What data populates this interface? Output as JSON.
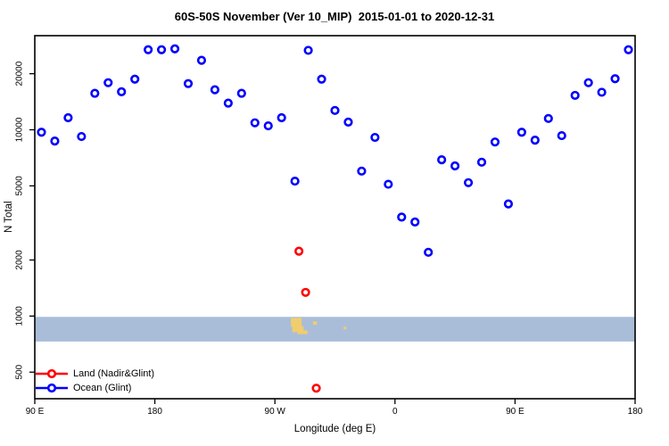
{
  "title": "60S-50S November (Ver 10_MIP)  2015-01-01 to 2020-12-31",
  "axes": {
    "x_label": "Longitude (deg E)",
    "y_label": "N Total"
  },
  "legend": {
    "items": [
      {
        "label": "Land (Nadir&Glint)",
        "color": "#ff0000",
        "symbol": "open-circle-on-line"
      },
      {
        "label": "Ocean (Glint)",
        "color": "#0000ff",
        "symbol": "open-circle-on-line"
      }
    ]
  },
  "chart_data": {
    "type": "scatter",
    "title": "60S-50S November (Ver 10_MIP)  2015-01-01 to 2020-12-31",
    "xlabel": "Longitude (deg E)",
    "ylabel": "N Total",
    "x_axis": {
      "note": "longitude axis wraps: 90E..180..90W..0..90E..180 (plot coordinate 90..540)",
      "range": [
        90,
        540
      ],
      "ticks": [
        {
          "at": 90,
          "label": "90 E"
        },
        {
          "at": 180,
          "label": "180"
        },
        {
          "at": 270,
          "label": "90 W"
        },
        {
          "at": 360,
          "label": "0"
        },
        {
          "at": 450,
          "label": "90 E"
        },
        {
          "at": 540,
          "label": "180"
        }
      ]
    },
    "y_axis": {
      "scale": "log",
      "range": [
        360,
        32000
      ],
      "ticks": [
        {
          "at": 500,
          "label": "500"
        },
        {
          "at": 1000,
          "label": "1000"
        },
        {
          "at": 2000,
          "label": "2000"
        },
        {
          "at": 5000,
          "label": "5000"
        },
        {
          "at": 10000,
          "label": "10000"
        },
        {
          "at": 20000,
          "label": "20000"
        }
      ]
    },
    "series": [
      {
        "name": "Ocean (Glint)",
        "color": "#0000ff",
        "marker": "open-circle",
        "points": [
          [
            95,
            9700
          ],
          [
            105,
            8700
          ],
          [
            115,
            11600
          ],
          [
            125,
            9200
          ],
          [
            135,
            15700
          ],
          [
            145,
            17900
          ],
          [
            155,
            16000
          ],
          [
            165,
            18700
          ],
          [
            175,
            26900
          ],
          [
            185,
            26900
          ],
          [
            195,
            27200
          ],
          [
            205,
            17700
          ],
          [
            215,
            23600
          ],
          [
            225,
            16400
          ],
          [
            235,
            13900
          ],
          [
            245,
            15700
          ],
          [
            255,
            10900
          ],
          [
            265,
            10500
          ],
          [
            275,
            11600
          ],
          [
            285,
            5300
          ],
          [
            295,
            26700
          ],
          [
            305,
            18700
          ],
          [
            315,
            12700
          ],
          [
            325,
            11000
          ],
          [
            335,
            6000
          ],
          [
            345,
            9100
          ],
          [
            355,
            5100
          ],
          [
            365,
            3400
          ],
          [
            375,
            3200
          ],
          [
            385,
            2200
          ],
          [
            395,
            6900
          ],
          [
            405,
            6400
          ],
          [
            415,
            5200
          ],
          [
            425,
            6700
          ],
          [
            435,
            8600
          ],
          [
            445,
            4000
          ],
          [
            455,
            9700
          ],
          [
            465,
            8800
          ],
          [
            475,
            11500
          ],
          [
            485,
            9300
          ],
          [
            495,
            15300
          ],
          [
            505,
            17900
          ],
          [
            515,
            15900
          ],
          [
            525,
            18800
          ],
          [
            535,
            26900
          ]
        ]
      },
      {
        "name": "Land (Nadir&Glint)",
        "color": "#ff0000",
        "marker": "open-circle",
        "points": [
          [
            288,
            2230
          ],
          [
            293,
            1340
          ],
          [
            301,
            410
          ]
        ]
      }
    ],
    "latitude_strip": {
      "description": "light-blue world strip band with land of 60S-50S drawn in tan",
      "band_color": "#a9bdd9",
      "land_color": "#f0cd6e",
      "n_range": [
        730,
        990
      ],
      "land_shapes": [
        {
          "name": "patagonia-upper",
          "lon0": 282.0,
          "lon1": 290.0,
          "f0": 0.04,
          "f1": 0.4
        },
        {
          "name": "patagonia-mid",
          "lon0": 283.0,
          "lon1": 291.5,
          "f0": 0.38,
          "f1": 0.62
        },
        {
          "name": "patagonia-tail",
          "lon0": 287.0,
          "lon1": 294.5,
          "f0": 0.55,
          "f1": 0.7
        },
        {
          "name": "falkland-islands",
          "lon0": 298.5,
          "lon1": 301.5,
          "f0": 0.18,
          "f1": 0.32
        },
        {
          "name": "south-georgia",
          "lon0": 321.5,
          "lon1": 323.5,
          "f0": 0.4,
          "f1": 0.5
        }
      ]
    }
  }
}
